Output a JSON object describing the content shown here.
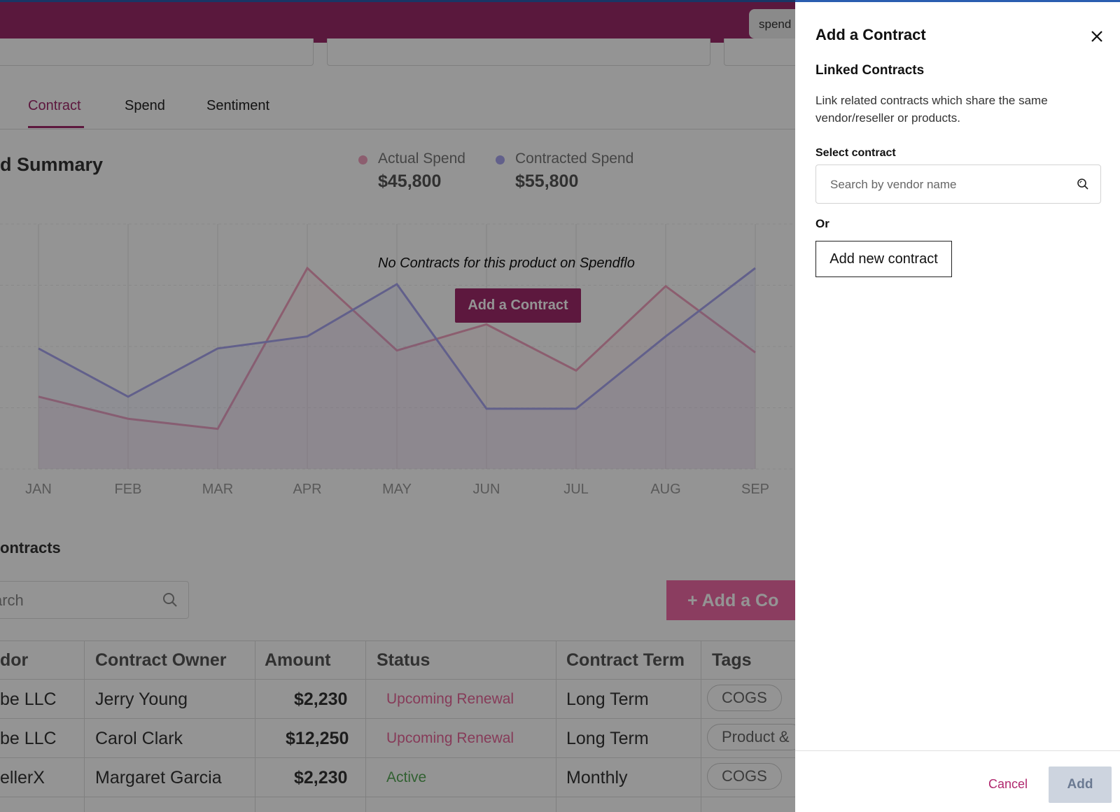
{
  "app": {
    "pill_text": "spend"
  },
  "tabs": [
    {
      "label": "Contract",
      "active": true
    },
    {
      "label": "Spend",
      "active": false
    },
    {
      "label": "Sentiment",
      "active": false
    }
  ],
  "spend_summary": {
    "title": "d Summary",
    "legend": [
      {
        "name": "Actual Spend",
        "value": "$45,800",
        "color": "#f2a2c0"
      },
      {
        "name": "Contracted Spend",
        "value": "$55,800",
        "color": "#a9a6ef"
      }
    ],
    "empty_message": "No Contracts for this product on Spendflo",
    "add_contract_label": "Add a Contract"
  },
  "chart_data": {
    "type": "line",
    "categories": [
      "JAN",
      "FEB",
      "MAR",
      "APR",
      "MAY",
      "JUN",
      "JUL",
      "AUG",
      "SEP"
    ],
    "series": [
      {
        "name": "Actual Spend",
        "values": [
          0.36,
          0.25,
          0.2,
          1.0,
          0.59,
          0.72,
          0.49,
          0.91,
          0.58
        ],
        "color": "#f2a2c0"
      },
      {
        "name": "Contracted Spend",
        "values": [
          0.6,
          0.36,
          0.6,
          0.66,
          0.92,
          0.3,
          0.3,
          0.66,
          1.0
        ],
        "color": "#a9a6ef"
      }
    ],
    "ylim": [
      0,
      1
    ],
    "grid": true,
    "legend_position": "top"
  },
  "contracts": {
    "title": "ontracts",
    "search_placeholder": "arch",
    "add_button_label": "+  Add a Co",
    "columns": [
      "dor",
      "Contract Owner",
      "Amount",
      "Status",
      "Contract Term",
      "Tags"
    ],
    "rows": [
      {
        "vendor": "be LLC",
        "owner": "Jerry Young",
        "amount": "$2,230",
        "status": "Upcoming Renewal",
        "term": "Long Term",
        "tag": "COGS"
      },
      {
        "vendor": "be LLC",
        "owner": "Carol Clark",
        "amount": "$12,250",
        "status": "Upcoming Renewal",
        "term": "Long Term",
        "tag": "Product &"
      },
      {
        "vendor": "ellerX",
        "owner": "Margaret Garcia",
        "amount": "$2,230",
        "status": "Active",
        "term": "Monthly",
        "tag": "COGS"
      }
    ]
  },
  "drawer": {
    "title": "Add a Contract",
    "subtitle": "Linked Contracts",
    "description": "Link related contracts which share the same vendor/reseller or products.",
    "select_label": "Select contract",
    "search_placeholder": "Search by vendor name",
    "or_label": "Or",
    "new_contract_label": "Add new contract",
    "cancel_label": "Cancel",
    "add_label": "Add"
  }
}
